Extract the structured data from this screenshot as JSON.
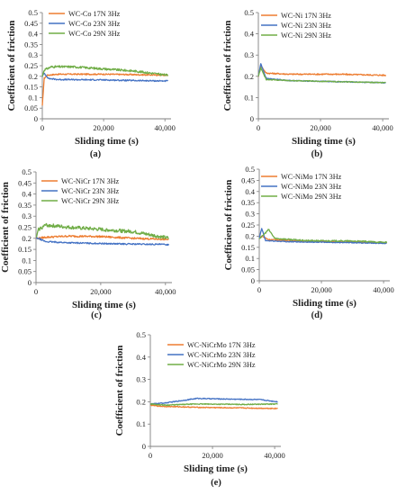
{
  "colors": {
    "orange": "#ED7D31",
    "blue": "#4472C4",
    "green": "#70AD47",
    "axis": "#7f7f7f"
  },
  "chart_data": [
    {
      "type": "line",
      "caption": "(a)",
      "xlabel": "Sliding time (s)",
      "ylabel": "Coefficient of friction",
      "xlim": [
        0,
        42000
      ],
      "ylim": [
        0,
        0.5
      ],
      "xticks": [
        "0",
        "20,000",
        "40,000"
      ],
      "yticks": [
        "0",
        "0.05",
        "0.1",
        "0.15",
        "0.2",
        "0.25",
        "0.3",
        "0.35",
        "0.4",
        "0.45",
        "0.5"
      ],
      "legend_position": "top-left",
      "series": [
        {
          "name": "WC-Co 17N 3Hz",
          "color": "orange",
          "noise": 0.003,
          "points": [
            [
              0,
              0.06
            ],
            [
              600,
              0.19
            ],
            [
              1500,
              0.205
            ],
            [
              5000,
              0.21
            ],
            [
              20000,
              0.21
            ],
            [
              30000,
              0.208
            ],
            [
              41000,
              0.205
            ]
          ]
        },
        {
          "name": "WC-Co 23N 3Hz",
          "color": "blue",
          "noise": 0.003,
          "points": [
            [
              0,
              0.2
            ],
            [
              600,
              0.215
            ],
            [
              2000,
              0.19
            ],
            [
              5000,
              0.185
            ],
            [
              20000,
              0.183
            ],
            [
              30000,
              0.18
            ],
            [
              41000,
              0.178
            ]
          ]
        },
        {
          "name": "WC-Co 29N 3Hz",
          "color": "green",
          "noise": 0.005,
          "points": [
            [
              0,
              0.2
            ],
            [
              600,
              0.23
            ],
            [
              3000,
              0.245
            ],
            [
              10000,
              0.245
            ],
            [
              20000,
              0.235
            ],
            [
              30000,
              0.225
            ],
            [
              41000,
              0.205
            ]
          ]
        }
      ]
    },
    {
      "type": "line",
      "caption": "(b)",
      "xlabel": "Sliding time (s)",
      "ylabel": "Coefficient of friction",
      "xlim": [
        0,
        42000
      ],
      "ylim": [
        0,
        0.5
      ],
      "xticks": [
        "0",
        "20,000",
        "40,000"
      ],
      "yticks": [
        "0",
        "0.1",
        "0.2",
        "0.3",
        "0.4",
        "0.5"
      ],
      "legend_position": "top-center",
      "series": [
        {
          "name": "WC-Ni 17N 3Hz",
          "color": "orange",
          "noise": 0.003,
          "points": [
            [
              0,
              0.2
            ],
            [
              800,
              0.25
            ],
            [
              2500,
              0.215
            ],
            [
              10000,
              0.21
            ],
            [
              25000,
              0.21
            ],
            [
              41000,
              0.205
            ]
          ]
        },
        {
          "name": "WC-Ni 23N 3Hz",
          "color": "blue",
          "noise": 0.002,
          "points": [
            [
              0,
              0.2
            ],
            [
              800,
              0.26
            ],
            [
              2500,
              0.19
            ],
            [
              10000,
              0.18
            ],
            [
              25000,
              0.175
            ],
            [
              41000,
              0.17
            ]
          ]
        },
        {
          "name": "WC-Ni 29N 3Hz",
          "color": "green",
          "noise": 0.002,
          "points": [
            [
              0,
              0.2
            ],
            [
              800,
              0.24
            ],
            [
              2500,
              0.185
            ],
            [
              10000,
              0.18
            ],
            [
              25000,
              0.175
            ],
            [
              41000,
              0.17
            ]
          ]
        }
      ]
    },
    {
      "type": "line",
      "caption": "(c)",
      "xlabel": "Sliding time (s)",
      "ylabel": "Coefficient of friction",
      "xlim": [
        0,
        42000
      ],
      "ylim": [
        0,
        0.5
      ],
      "xticks": [
        "0",
        "20,000",
        "40,000"
      ],
      "yticks": [
        "0",
        "0.05",
        "0.1",
        "0.15",
        "0.2",
        "0.25",
        "0.3",
        "0.35",
        "0.4",
        "0.45",
        "0.5"
      ],
      "legend_position": "top-center",
      "series": [
        {
          "name": "WC-NiCr 17N 3Hz",
          "color": "orange",
          "noise": 0.004,
          "points": [
            [
              0,
              0.2
            ],
            [
              600,
              0.2
            ],
            [
              3000,
              0.205
            ],
            [
              10000,
              0.21
            ],
            [
              20000,
              0.208
            ],
            [
              30000,
              0.2
            ],
            [
              41000,
              0.195
            ]
          ]
        },
        {
          "name": "WC-NiCr 23N 3Hz",
          "color": "blue",
          "noise": 0.003,
          "points": [
            [
              0,
              0.2
            ],
            [
              600,
              0.2
            ],
            [
              3000,
              0.185
            ],
            [
              10000,
              0.18
            ],
            [
              25000,
              0.175
            ],
            [
              41000,
              0.172
            ]
          ]
        },
        {
          "name": "WC-NiCr 29N 3Hz",
          "color": "green",
          "noise": 0.008,
          "points": [
            [
              0,
              0.2
            ],
            [
              800,
              0.24
            ],
            [
              3000,
              0.26
            ],
            [
              10000,
              0.25
            ],
            [
              20000,
              0.24
            ],
            [
              30000,
              0.23
            ],
            [
              41000,
              0.2
            ]
          ]
        }
      ]
    },
    {
      "type": "line",
      "caption": "(d)",
      "xlabel": "Sliding time (s)",
      "ylabel": "Coefficient of friction",
      "xlim": [
        0,
        42000
      ],
      "ylim": [
        0,
        0.5
      ],
      "xticks": [
        "0",
        "20,000",
        "40,000"
      ],
      "yticks": [
        "0",
        "0.05",
        "0.1",
        "0.15",
        "0.2",
        "0.25",
        "0.3",
        "0.35",
        "0.4",
        "0.45",
        "0.5"
      ],
      "legend_position": "top-center",
      "series": [
        {
          "name": "WC-NiMo 17N 3Hz",
          "color": "orange",
          "noise": 0.002,
          "points": [
            [
              0,
              0.19
            ],
            [
              800,
              0.2
            ],
            [
              3000,
              0.185
            ],
            [
              10000,
              0.18
            ],
            [
              25000,
              0.175
            ],
            [
              41000,
              0.17
            ]
          ]
        },
        {
          "name": "WC-NiMo 23N 3Hz",
          "color": "blue",
          "noise": 0.002,
          "points": [
            [
              0,
              0.19
            ],
            [
              800,
              0.235
            ],
            [
              2000,
              0.18
            ],
            [
              10000,
              0.175
            ],
            [
              25000,
              0.172
            ],
            [
              41000,
              0.168
            ]
          ]
        },
        {
          "name": "WC-NiMo 29N 3Hz",
          "color": "green",
          "noise": 0.003,
          "points": [
            [
              0,
              0.19
            ],
            [
              1000,
              0.2
            ],
            [
              3000,
              0.23
            ],
            [
              5000,
              0.19
            ],
            [
              15000,
              0.18
            ],
            [
              30000,
              0.178
            ],
            [
              41000,
              0.172
            ]
          ]
        }
      ]
    },
    {
      "type": "line",
      "caption": "(e)",
      "xlabel": "Sliding time (s)",
      "ylabel": "Coefficient of friction",
      "xlim": [
        0,
        42000
      ],
      "ylim": [
        0,
        0.5
      ],
      "xticks": [
        "0",
        "20,000",
        "40,000"
      ],
      "yticks": [
        "0",
        "0.1",
        "0.2",
        "0.3",
        "0.4",
        "0.5"
      ],
      "legend_position": "top-center",
      "series": [
        {
          "name": "WC-NiCrMo 17N 3Hz",
          "color": "orange",
          "noise": 0.002,
          "points": [
            [
              0,
              0.185
            ],
            [
              3000,
              0.18
            ],
            [
              15000,
              0.175
            ],
            [
              30000,
              0.172
            ],
            [
              41000,
              0.17
            ]
          ]
        },
        {
          "name": "WC-NiCrMo 23N 3Hz",
          "color": "blue",
          "noise": 0.002,
          "points": [
            [
              0,
              0.19
            ],
            [
              5000,
              0.195
            ],
            [
              15000,
              0.215
            ],
            [
              25000,
              0.212
            ],
            [
              35000,
              0.21
            ],
            [
              41000,
              0.2
            ]
          ]
        },
        {
          "name": "WC-NiCrMo 29N 3Hz",
          "color": "green",
          "noise": 0.002,
          "points": [
            [
              0,
              0.19
            ],
            [
              5000,
              0.185
            ],
            [
              15000,
              0.19
            ],
            [
              30000,
              0.188
            ],
            [
              41000,
              0.19
            ]
          ]
        }
      ]
    }
  ]
}
